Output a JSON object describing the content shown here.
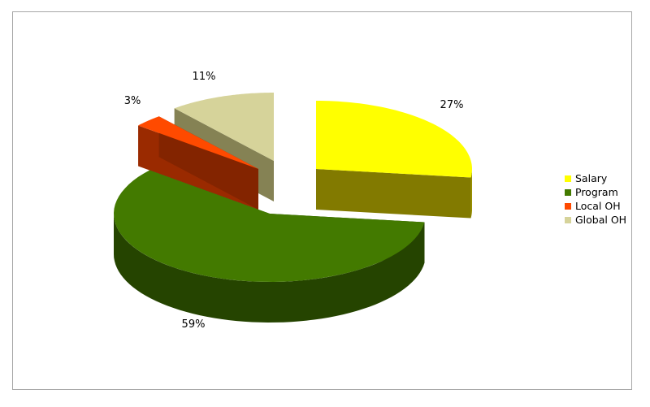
{
  "chart_data": {
    "type": "pie",
    "title": "",
    "categories": [
      "Salary",
      "Program",
      "Local OH",
      "Global OH"
    ],
    "values": [
      27,
      59,
      3,
      11
    ],
    "data_labels": [
      "27%",
      "59%",
      "3%",
      "11%"
    ],
    "colors": {
      "top": [
        "#ffff00",
        "#437a00",
        "#ff4a00",
        "#d6d39a"
      ],
      "side": [
        "#999000",
        "#254400",
        "#9a2a00",
        "#858254"
      ]
    },
    "style": "3d-exploded",
    "legend_position": "right"
  }
}
